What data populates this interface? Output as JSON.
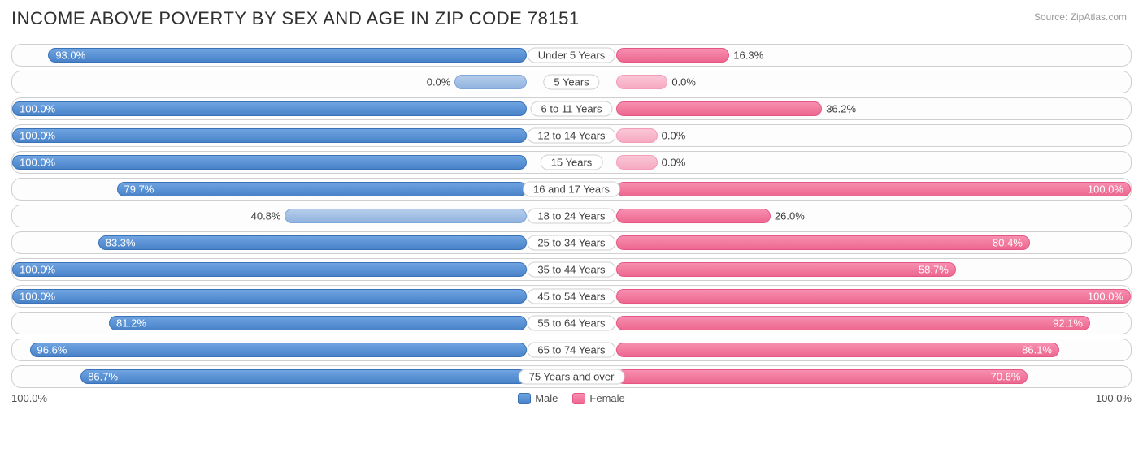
{
  "title": "INCOME ABOVE POVERTY BY SEX AND AGE IN ZIP CODE 78151",
  "source": "Source: ZipAtlas.com",
  "axis_left_label": "100.0%",
  "axis_right_label": "100.0%",
  "legend": {
    "male": "Male",
    "female": "Female"
  },
  "colors": {
    "male": "#5b93d6",
    "male_faded": "#a3c0e5",
    "female": "#f27ba0",
    "female_faded": "#f8b8cc",
    "border": "#cfcfcf",
    "text": "#404040",
    "bg": "#ffffff"
  },
  "chart": {
    "type": "diverging-bar",
    "max_pct": 100.0,
    "label_offset_pct": 8,
    "rows": [
      {
        "category": "Under 5 Years",
        "male": 93.0,
        "male_label": "93.0%",
        "female_bar": 22,
        "female": 16.3,
        "female_label": "16.3%"
      },
      {
        "category": "5 Years",
        "male_bar": 14,
        "male": 0.0,
        "male_label": "0.0%",
        "male_faded": true,
        "female_bar": 10,
        "female": 0.0,
        "female_label": "0.0%",
        "female_faded": true
      },
      {
        "category": "6 to 11 Years",
        "male": 100.0,
        "male_label": "100.0%",
        "female_bar": 40,
        "female": 36.2,
        "female_label": "36.2%"
      },
      {
        "category": "12 to 14 Years",
        "male": 100.0,
        "male_label": "100.0%",
        "female_bar": 8,
        "female": 0.0,
        "female_label": "0.0%",
        "female_faded": true
      },
      {
        "category": "15 Years",
        "male": 100.0,
        "male_label": "100.0%",
        "female_bar": 8,
        "female": 0.0,
        "female_label": "0.0%",
        "female_faded": true
      },
      {
        "category": "16 and 17 Years",
        "male": 79.7,
        "male_label": "79.7%",
        "female": 100.0,
        "female_label": "100.0%"
      },
      {
        "category": "18 to 24 Years",
        "male": 40.8,
        "male_bar": 47,
        "male_label": "40.8%",
        "male_faded": true,
        "female_bar": 30,
        "female": 26.0,
        "female_label": "26.0%"
      },
      {
        "category": "25 to 34 Years",
        "male": 83.3,
        "male_label": "83.3%",
        "female": 80.4,
        "female_label": "80.4%"
      },
      {
        "category": "35 to 44 Years",
        "male": 100.0,
        "male_label": "100.0%",
        "female": 58.7,
        "female_bar": 66,
        "female_label": "58.7%"
      },
      {
        "category": "45 to 54 Years",
        "male": 100.0,
        "male_label": "100.0%",
        "female": 100.0,
        "female_label": "100.0%"
      },
      {
        "category": "55 to 64 Years",
        "male": 81.2,
        "male_label": "81.2%",
        "female": 92.1,
        "female_label": "92.1%"
      },
      {
        "category": "65 to 74 Years",
        "male": 96.6,
        "male_label": "96.6%",
        "female": 86.1,
        "female_label": "86.1%"
      },
      {
        "category": "75 Years and over",
        "male": 86.7,
        "male_label": "86.7%",
        "female": 70.6,
        "female_bar": 80,
        "female_label": "70.6%"
      }
    ]
  }
}
